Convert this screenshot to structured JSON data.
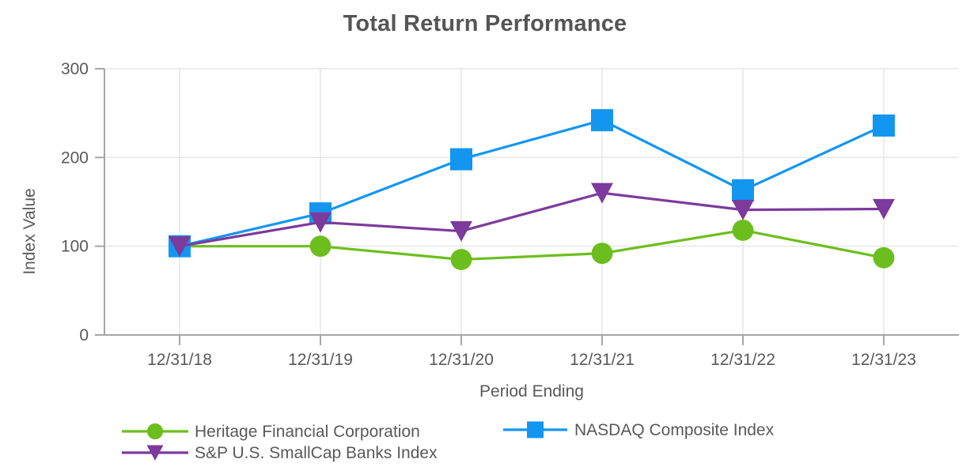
{
  "title": "Total Return Performance",
  "chart_data": {
    "type": "line",
    "title": "Total Return Performance",
    "xlabel": "Period Ending",
    "ylabel": "Index Value",
    "categories": [
      "12/31/18",
      "12/31/19",
      "12/31/20",
      "12/31/21",
      "12/31/22",
      "12/31/23"
    ],
    "yticks": [
      0,
      100,
      200,
      300
    ],
    "ylim": [
      0,
      300
    ],
    "grid": true,
    "legend_position": "bottom",
    "series": [
      {
        "name": "Heritage Financial Corporation",
        "marker": "circle",
        "color": "#6CBE1E",
        "values": [
          100,
          100,
          85,
          92,
          118,
          87
        ]
      },
      {
        "name": "NASDAQ Composite Index",
        "marker": "square",
        "color": "#1296F0",
        "values": [
          100,
          137,
          198,
          242,
          163,
          236
        ]
      },
      {
        "name": "S&P U.S. SmallCap Banks Index",
        "marker": "triangle-down",
        "color": "#7C3A9D",
        "values": [
          100,
          127,
          117,
          160,
          141,
          142
        ]
      }
    ]
  },
  "colors": {
    "background": "#FFFFFF",
    "text": "#595959",
    "title_text": "#555555",
    "axis": "#A6A6A6",
    "grid": "#E7E7E7"
  }
}
